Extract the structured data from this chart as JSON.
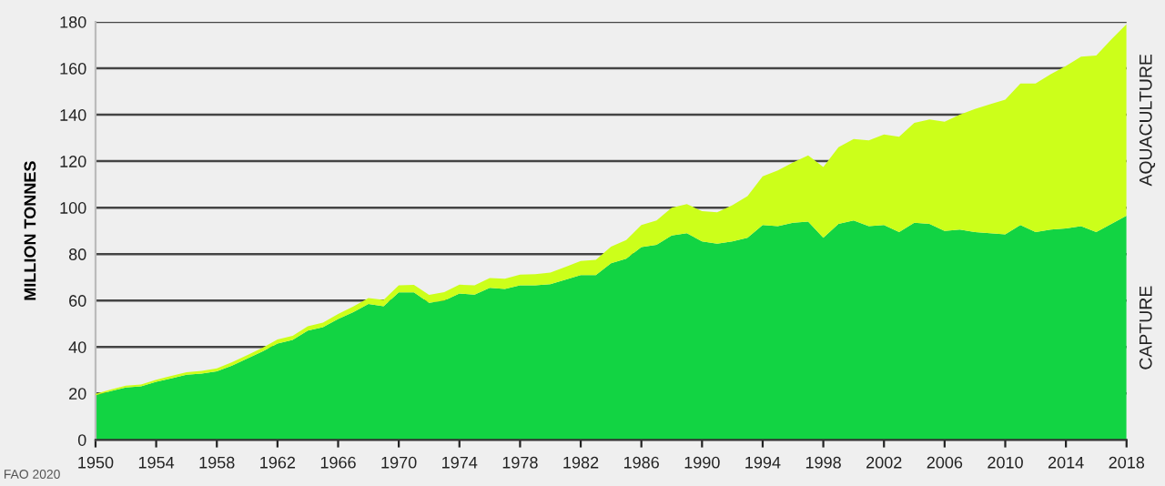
{
  "chart_data": {
    "type": "area",
    "stacked": true,
    "ylabel": "MILLION TONNES",
    "annotations": [
      "FAO 2020"
    ],
    "x": [
      1950,
      1951,
      1952,
      1953,
      1954,
      1955,
      1956,
      1957,
      1958,
      1959,
      1960,
      1961,
      1962,
      1963,
      1964,
      1965,
      1966,
      1967,
      1968,
      1969,
      1970,
      1971,
      1972,
      1973,
      1974,
      1975,
      1976,
      1977,
      1978,
      1979,
      1980,
      1981,
      1982,
      1983,
      1984,
      1985,
      1986,
      1987,
      1988,
      1989,
      1990,
      1991,
      1992,
      1993,
      1994,
      1995,
      1996,
      1997,
      1998,
      1999,
      2000,
      2001,
      2002,
      2003,
      2004,
      2005,
      2006,
      2007,
      2008,
      2009,
      2010,
      2011,
      2012,
      2013,
      2014,
      2015,
      2016,
      2017,
      2018
    ],
    "series": [
      {
        "name": "CAPTURE",
        "color": "#12d443",
        "values": [
          19.2,
          21,
          22.5,
          23,
          25,
          26.5,
          28,
          28.5,
          29.5,
          32,
          35,
          38,
          41.5,
          43,
          47,
          48.5,
          52,
          55,
          58.5,
          57.5,
          63.5,
          63.5,
          59,
          60,
          63,
          62.5,
          65.5,
          65,
          66.5,
          66.5,
          67,
          69,
          71,
          71,
          76,
          78,
          83,
          84,
          88,
          89,
          85.5,
          84.5,
          85.5,
          87,
          92.5,
          92,
          93.5,
          94,
          87,
          93,
          94.5,
          92,
          92.5,
          89.5,
          93.5,
          93,
          90,
          90.5,
          89.5,
          89,
          88.5,
          92.5,
          89.5,
          90.5,
          91,
          92,
          89.5,
          93,
          96.5
        ]
      },
      {
        "name": "AQUACULTURE",
        "color": "#ccff1a",
        "values": [
          0.6,
          0.7,
          0.8,
          0.8,
          0.9,
          1.0,
          1.1,
          1.2,
          1.3,
          1.4,
          1.5,
          1.6,
          1.7,
          1.8,
          1.9,
          2.0,
          2.2,
          2.4,
          2.6,
          2.8,
          3.0,
          3.2,
          3.4,
          3.6,
          3.8,
          4.0,
          4.2,
          4.4,
          4.6,
          4.8,
          5.0,
          5.5,
          6.0,
          6.5,
          7.2,
          8.0,
          9.5,
          10.5,
          12.0,
          12.5,
          13.0,
          13.5,
          15.5,
          18.0,
          21.0,
          24.0,
          26.0,
          28.5,
          30.5,
          33.0,
          35.0,
          37.0,
          39.0,
          41.0,
          43.0,
          45.0,
          47.0,
          49.5,
          53.0,
          55.5,
          58.0,
          61.0,
          64.0,
          67.0,
          70.0,
          73.0,
          76.0,
          79.5,
          82.5
        ]
      }
    ],
    "xlim": [
      1950,
      2018
    ],
    "xticks": [
      1950,
      1954,
      1958,
      1962,
      1966,
      1970,
      1974,
      1978,
      1982,
      1986,
      1990,
      1994,
      1998,
      2002,
      2006,
      2010,
      2014,
      2018
    ],
    "ylim": [
      0,
      180
    ],
    "yticks": [
      0,
      20,
      40,
      60,
      80,
      100,
      120,
      140,
      160,
      180
    ],
    "grid": "y",
    "legend": false
  }
}
